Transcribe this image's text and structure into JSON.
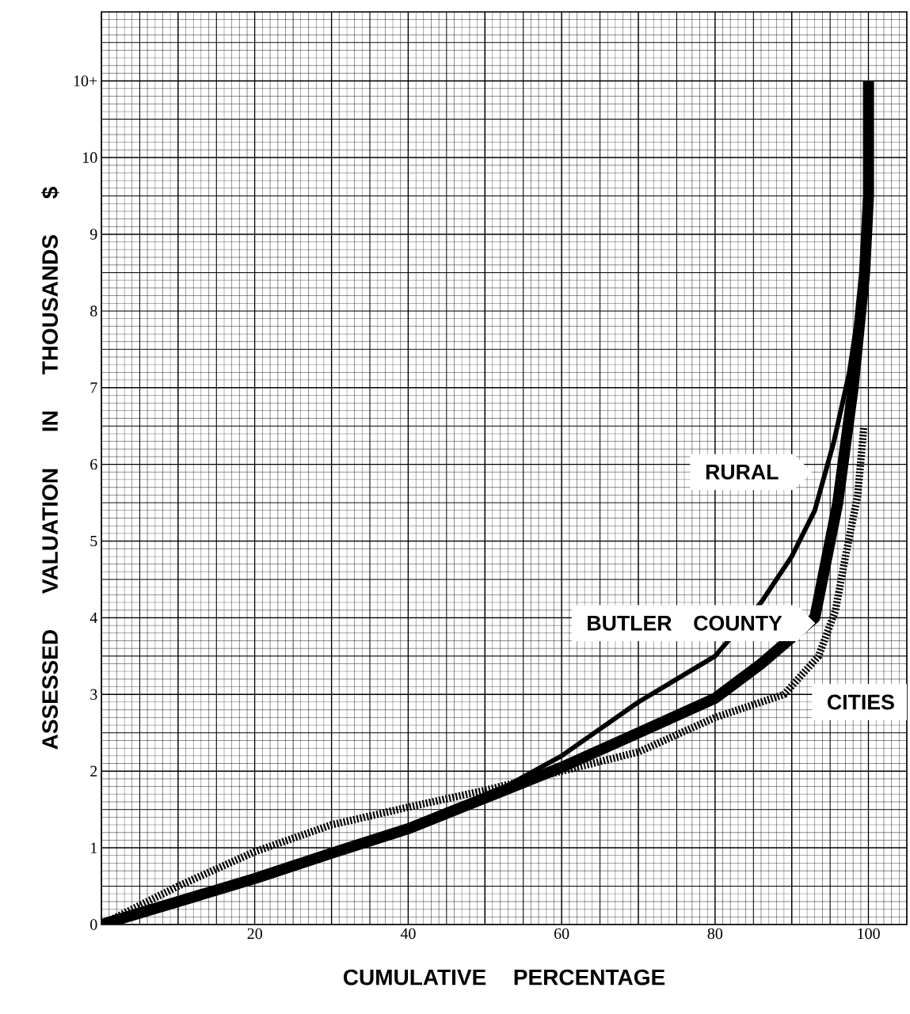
{
  "chart_data": {
    "type": "line",
    "xlabel": "CUMULATIVE PERCENTAGE",
    "ylabel": "ASSESSED VALUATION IN THOUSANDS $",
    "xlim": [
      0,
      105
    ],
    "ylim": [
      0,
      11.9
    ],
    "xticks": [
      20,
      40,
      60,
      80,
      100
    ],
    "yticks": [
      0,
      1,
      2,
      3,
      4,
      5,
      6,
      7,
      8,
      9,
      10,
      {
        "value": 11,
        "label": "10+"
      }
    ],
    "grid": true,
    "series": [
      {
        "name": "RURAL",
        "color": "#000000",
        "line_style": "solid",
        "x": [
          0,
          10,
          20,
          30,
          40,
          50,
          60,
          70,
          80,
          86,
          90,
          93,
          95.5,
          97.5,
          99
        ],
        "values": [
          0,
          0.3,
          0.6,
          0.93,
          1.25,
          1.65,
          2.2,
          2.9,
          3.5,
          4.2,
          4.8,
          5.4,
          6.3,
          7.2,
          8.2
        ]
      },
      {
        "name": "BUTLER COUNTY",
        "color": "#000000",
        "line_style": "solid",
        "x": [
          0,
          10,
          20,
          30,
          40,
          50,
          60,
          70,
          80,
          86,
          93,
          96,
          98,
          99.5,
          100,
          100
        ],
        "values": [
          0,
          0.3,
          0.6,
          0.93,
          1.25,
          1.65,
          2.05,
          2.5,
          2.95,
          3.4,
          4.0,
          5.5,
          7.0,
          8.5,
          9.5,
          11
        ]
      },
      {
        "name": "CITIES",
        "color": "#000000",
        "line_style": "dotted",
        "x": [
          0,
          10,
          20,
          30,
          40,
          50,
          60,
          70,
          80,
          89,
          93.5,
          95.7,
          97,
          98.6,
          99.4
        ],
        "values": [
          0,
          0.5,
          0.95,
          1.3,
          1.53,
          1.75,
          2.0,
          2.25,
          2.7,
          3.0,
          3.5,
          4.1,
          4.8,
          5.6,
          6.5
        ]
      }
    ]
  }
}
